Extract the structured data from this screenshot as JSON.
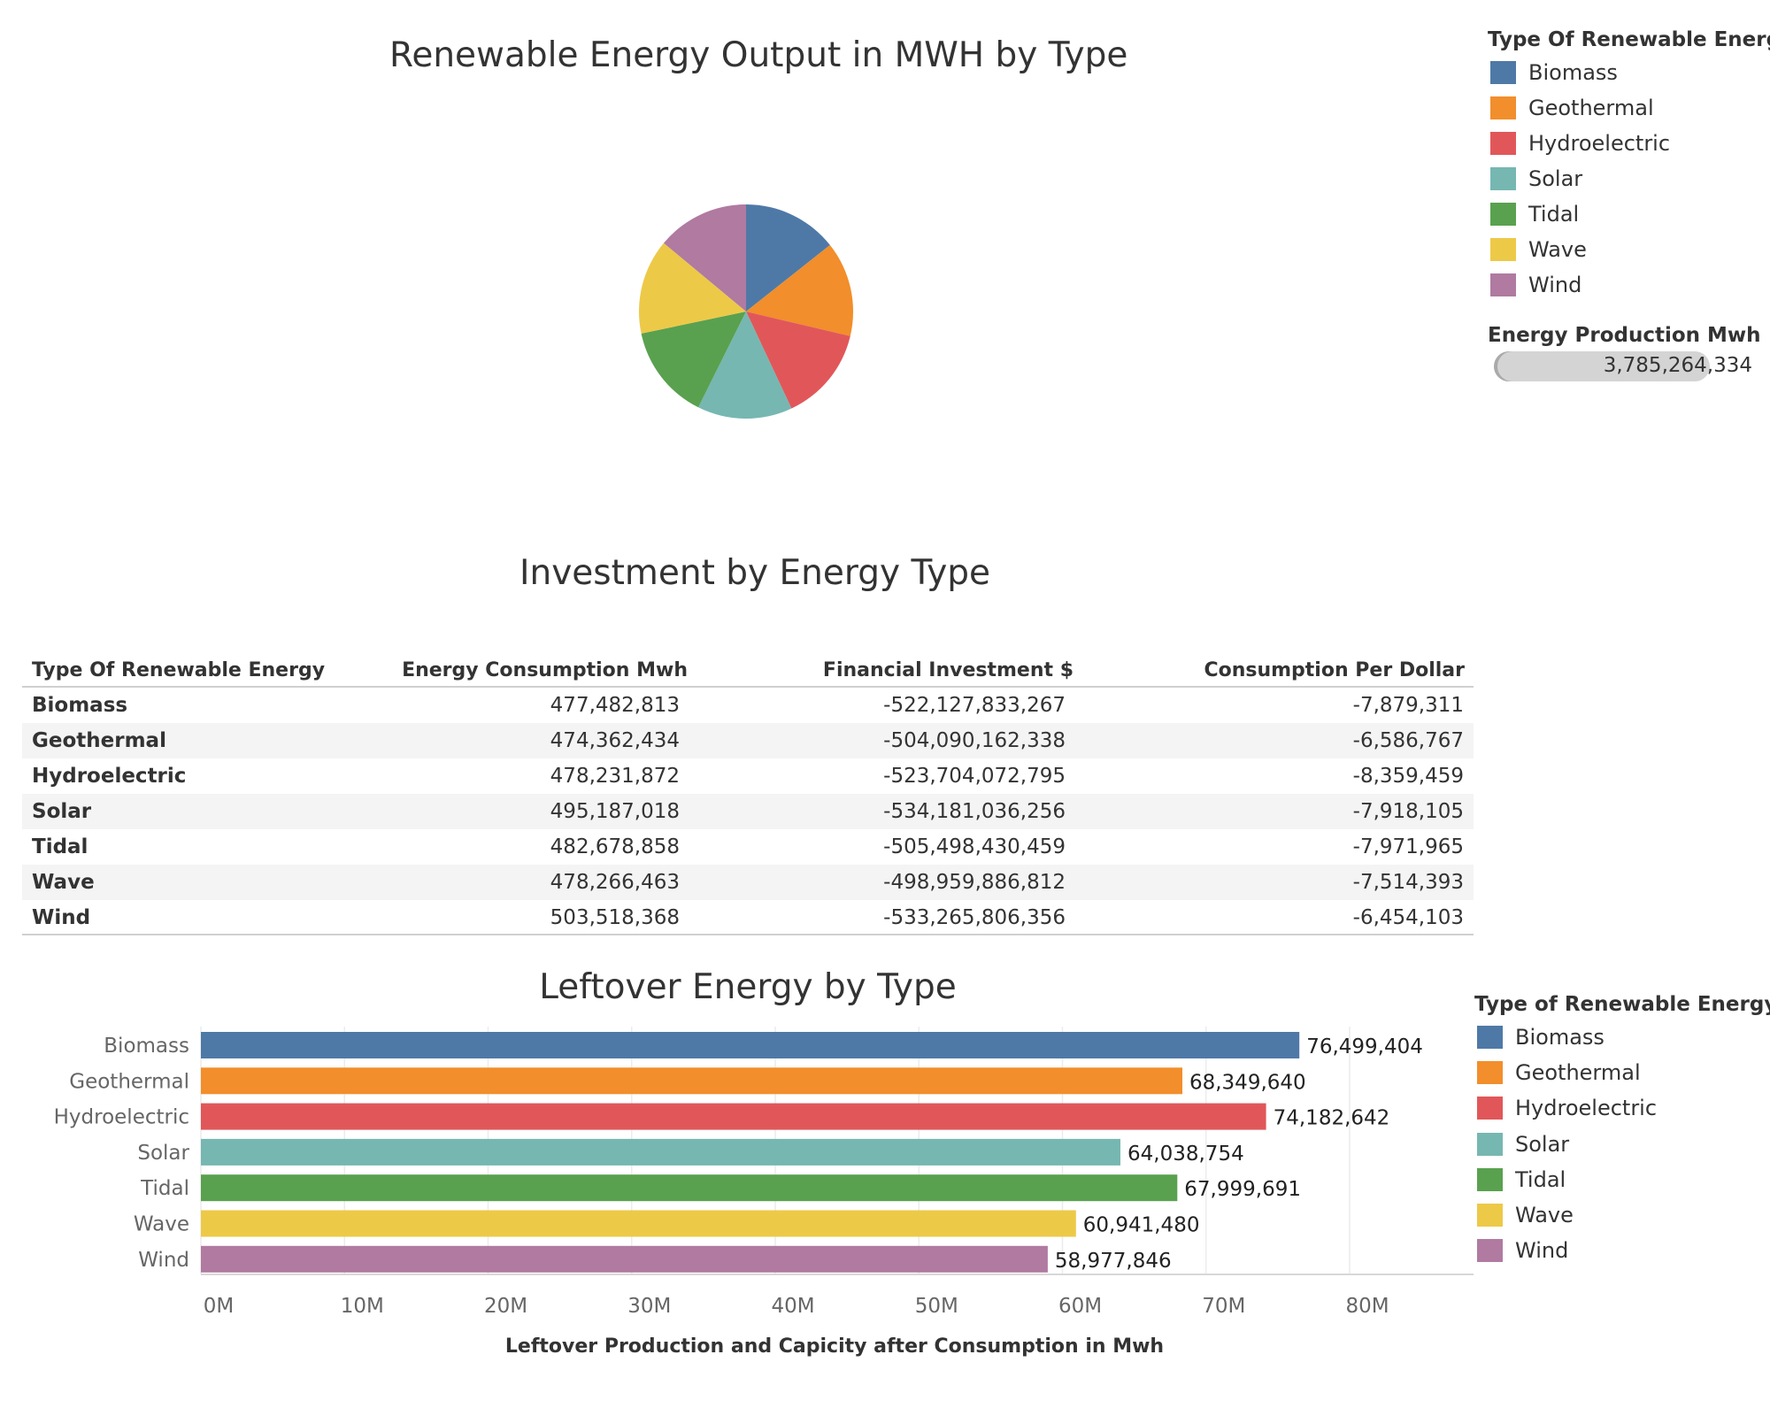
{
  "colors": {
    "Biomass": "#4e79a7",
    "Geothermal": "#f28e2b",
    "Hydroelectric": "#e15759",
    "Solar": "#76b7b2",
    "Tidal": "#59a14f",
    "Wave": "#edc948",
    "Wind": "#b07aa1"
  },
  "pie_panel": {
    "title": "Renewable Energy Output in MWH by Type",
    "legend_title": "Type Of Renewable Energy",
    "size_legend_title": "Energy Production Mwh",
    "size_legend_value": "3,785,264,334"
  },
  "table_panel": {
    "title": "Investment by Energy Type",
    "columns": [
      "Type Of Renewable Energy",
      "Energy Consumption Mwh",
      "Financial Investment $",
      "Consumption Per Dollar"
    ],
    "rows": [
      {
        "type": "Biomass",
        "consumption": "477,482,813",
        "investment": "-522,127,833,267",
        "per_dollar": "-7,879,311"
      },
      {
        "type": "Geothermal",
        "consumption": "474,362,434",
        "investment": "-504,090,162,338",
        "per_dollar": "-6,586,767"
      },
      {
        "type": "Hydroelectric",
        "consumption": "478,231,872",
        "investment": "-523,704,072,795",
        "per_dollar": "-8,359,459"
      },
      {
        "type": "Solar",
        "consumption": "495,187,018",
        "investment": "-534,181,036,256",
        "per_dollar": "-7,918,105"
      },
      {
        "type": "Tidal",
        "consumption": "482,678,858",
        "investment": "-505,498,430,459",
        "per_dollar": "-7,971,965"
      },
      {
        "type": "Wave",
        "consumption": "478,266,463",
        "investment": "-498,959,886,812",
        "per_dollar": "-7,514,393"
      },
      {
        "type": "Wind",
        "consumption": "503,518,368",
        "investment": "-533,265,806,356",
        "per_dollar": "-6,454,103"
      }
    ]
  },
  "bar_panel": {
    "legend_title": "Type of Renewable Energy"
  },
  "chart_data": [
    {
      "type": "pie",
      "title": "Renewable Energy Output in MWH by Type",
      "categories": [
        "Biomass",
        "Geothermal",
        "Hydroelectric",
        "Solar",
        "Tidal",
        "Wave",
        "Wind"
      ],
      "values": [
        0.1434,
        0.1434,
        0.1434,
        0.1434,
        0.1434,
        0.1434,
        0.1396
      ],
      "total_label": "3,785,264,334",
      "legend_title": "Type Of Renewable Energy",
      "legend": "top-right"
    },
    {
      "type": "bar",
      "orientation": "horizontal",
      "title": "Leftover Energy by Type",
      "categories": [
        "Biomass",
        "Geothermal",
        "Hydroelectric",
        "Solar",
        "Tidal",
        "Wave",
        "Wind"
      ],
      "values": [
        76499404,
        68349640,
        74182642,
        64038754,
        67999691,
        60941480,
        58977846
      ],
      "value_labels": [
        "76,499,404",
        "68,349,640",
        "74,182,642",
        "64,038,754",
        "67,999,691",
        "60,941,480",
        "58,977,846"
      ],
      "xlabel": "Leftover Production and Capicity after Consumption  in Mwh",
      "ylabel": "",
      "xlim": [
        0,
        89000000
      ],
      "xticks": [
        0,
        10000000,
        20000000,
        30000000,
        40000000,
        50000000,
        60000000,
        70000000,
        80000000
      ],
      "xtick_labels": [
        "0M",
        "10M",
        "20M",
        "30M",
        "40M",
        "50M",
        "60M",
        "70M",
        "80M"
      ],
      "grid": true,
      "legend_title": "Type of Renewable Energy",
      "legend": "right"
    }
  ]
}
